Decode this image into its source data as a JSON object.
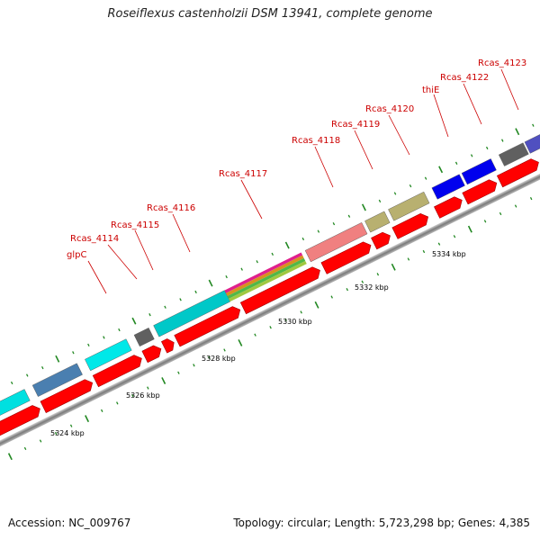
{
  "title": "Roseiflexus castenholzii DSM 13941, complete genome",
  "footer": {
    "accession": "Accession: NC_009767",
    "summary": "Topology: circular; Length: 5,723,298 bp; Genes: 4,385"
  },
  "colors": {
    "cds_strand": "#ff0000",
    "scale_ticks": "#228822",
    "backbone": "#8c8c8c",
    "label_text": "#cc0000"
  },
  "scale_labels": [
    {
      "kbp": 5324,
      "text": "5324 kbp"
    },
    {
      "kbp": 5326,
      "text": "5326 kbp"
    },
    {
      "kbp": 5328,
      "text": "5328 kbp"
    },
    {
      "kbp": 5330,
      "text": "5330 kbp"
    },
    {
      "kbp": 5332,
      "text": "5332 kbp"
    },
    {
      "kbp": 5334,
      "text": "5334 kbp"
    }
  ],
  "gene_labels": [
    "glpC",
    "Rcas_4114",
    "Rcas_4115",
    "Rcas_4116",
    "Rcas_4117",
    "Rcas_4118",
    "Rcas_4119",
    "Rcas_4120",
    "thiE",
    "Rcas_4122",
    "Rcas_4123"
  ],
  "cog_colors": [
    "#00e0e0",
    "#4a7fb0",
    "#606060",
    "#00c8c8",
    "#f08080",
    "#b8b070",
    "#0000ee"
  ]
}
